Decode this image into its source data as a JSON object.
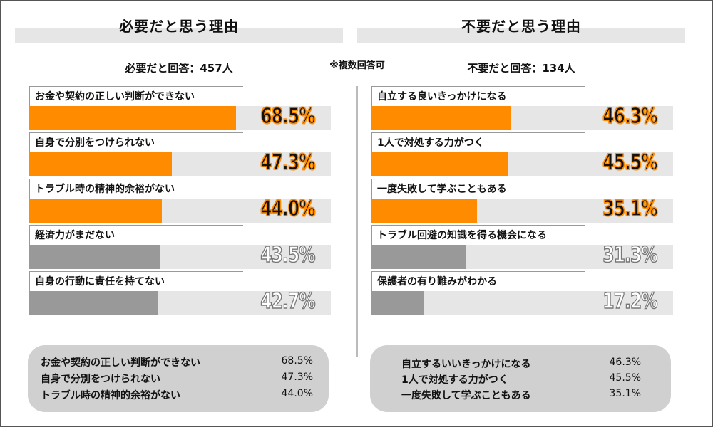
{
  "note": "※複数回答可",
  "chart_data": [
    {
      "type": "bar",
      "orientation": "horizontal",
      "title": "必要だと思う理由",
      "subtitle": "必要だと回答：457人",
      "unit": "%",
      "xlim": [
        0,
        100
      ],
      "categories": [
        "お金や契約の正しい判断ができない",
        "自身で分別をつけられない",
        "トラブル時の精神的余裕がない",
        "経済力がまだない",
        "自身の行動に責任を持てない"
      ],
      "values": [
        68.5,
        47.3,
        44.0,
        43.5,
        42.7
      ],
      "value_labels": [
        "68.5%",
        "47.3%",
        "44.0%",
        "43.5%",
        "42.7%"
      ],
      "highlighted": [
        true,
        true,
        true,
        false,
        false
      ]
    },
    {
      "type": "bar",
      "orientation": "horizontal",
      "title": "不要だと思う理由",
      "subtitle": "不要だと回答：134人",
      "unit": "%",
      "xlim": [
        0,
        100
      ],
      "categories": [
        "自立する良いきっかけになる",
        "1人で対処する力がつく",
        "一度失敗して学ぶこともある",
        "トラブル回避の知識を得る機会になる",
        "保護者の有り難みがわかる"
      ],
      "values": [
        46.3,
        45.5,
        35.1,
        31.3,
        17.2
      ],
      "value_labels": [
        "46.3%",
        "45.5%",
        "35.1%",
        "31.3%",
        "17.2%"
      ],
      "highlighted": [
        true,
        true,
        true,
        false,
        false
      ]
    }
  ],
  "summary": {
    "left": [
      {
        "label": "お金や契約の正しい判断ができない",
        "value": "68.5%"
      },
      {
        "label": "自身で分別をつけられない",
        "value": "47.3%"
      },
      {
        "label": "トラブル時の精神的余裕がない",
        "value": "44.0%"
      }
    ],
    "right": [
      {
        "label": "自立するいいきっかけになる",
        "value": "46.3%"
      },
      {
        "label": "1人で対処する力がつく",
        "value": "45.5%"
      },
      {
        "label": "一度失敗して学ぶこともある",
        "value": "35.1%"
      }
    ]
  },
  "colors": {
    "highlight": "#ff8c00",
    "normal": "#999999",
    "track": "#e6e6e6",
    "summary_bg": "#d0d0d0"
  }
}
